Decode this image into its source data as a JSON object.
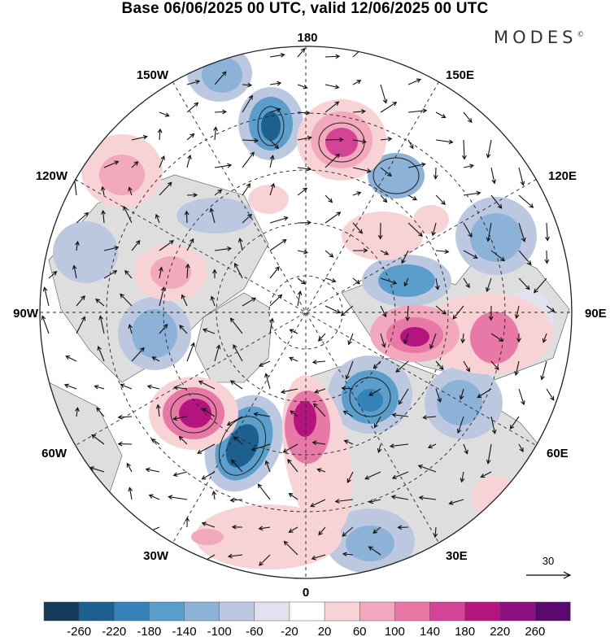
{
  "header": {
    "title": "Base 06/06/2025 00 UTC, valid 12/06/2025 00 UTC",
    "brand": "MODES",
    "brand_mark": "©"
  },
  "map": {
    "projection": "north-polar-stereographic",
    "longitude_labels": {
      "top": "180",
      "bottom": "0",
      "left": "90W",
      "right": "90E",
      "upper_left_1": "150W",
      "upper_left_2": "120W",
      "upper_right_1": "150E",
      "upper_right_2": "120E",
      "lower_left_1": "60W",
      "lower_left_2": "30W",
      "lower_right_1": "60E",
      "lower_right_2": "30E"
    },
    "vector_scale_label": "30",
    "field_colors": {
      "negative_strong": "#1f5f95",
      "negative_medium": "#6e9ec9",
      "negative_weak": "#c5d2e6",
      "near_zero": "#ffffff",
      "land_gray": "#dcdcdc",
      "positive_weak": "#f6cfd4",
      "positive_medium": "#ee8fb0",
      "positive_strong": "#c4227f"
    }
  },
  "colorbar": {
    "ticks": [
      "-260",
      "-220",
      "-180",
      "-140",
      "-100",
      "-60",
      "-20",
      "20",
      "60",
      "100",
      "140",
      "180",
      "220",
      "260"
    ],
    "colors": [
      "#143a59",
      "#1d5f8f",
      "#3482b8",
      "#5b9dcb",
      "#8db2d8",
      "#bcc8e0",
      "#e2e2ef",
      "#ffffff",
      "#f8d3d6",
      "#f2a8bd",
      "#e879a6",
      "#d34497",
      "#b4147e",
      "#8b0f80",
      "#5a0a6e"
    ]
  }
}
